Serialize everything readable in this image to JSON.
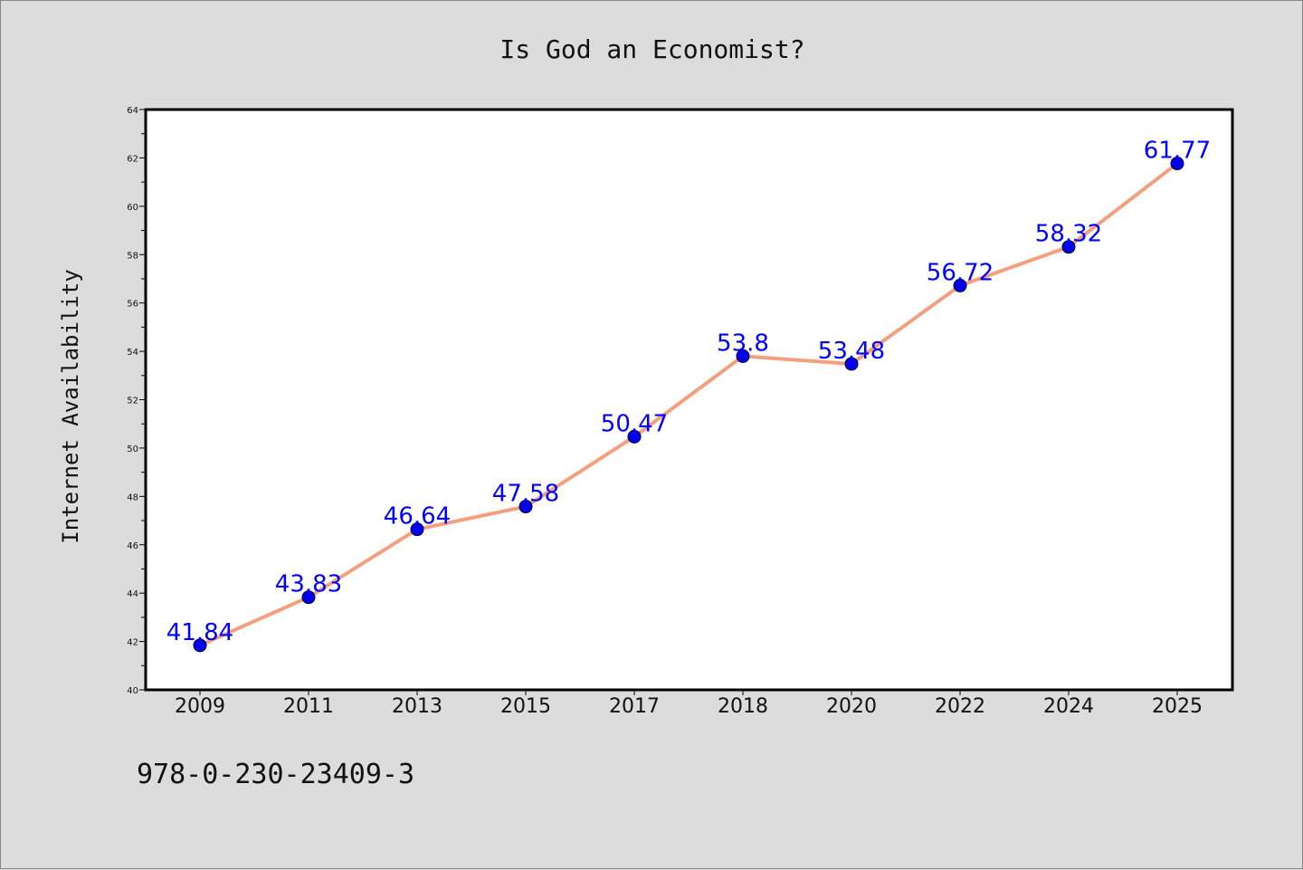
{
  "chart_data": {
    "type": "line",
    "title": "Is God an Economist?",
    "xlabel": "",
    "ylabel": "Internet Availability",
    "categories": [
      "2009",
      "2011",
      "2013",
      "2015",
      "2017",
      "2018",
      "2020",
      "2022",
      "2024",
      "2025"
    ],
    "series": [
      {
        "values": [
          41.84,
          43.83,
          46.64,
          47.58,
          50.47,
          53.8,
          53.48,
          56.72,
          58.32,
          61.77
        ]
      }
    ],
    "data_labels": [
      "41.84",
      "43.83",
      "46.64",
      "47.58",
      "50.47",
      "53.8",
      "53.48",
      "56.72",
      "58.32",
      "61.77"
    ],
    "ylim": [
      40,
      64
    ],
    "y_ticks": [
      "40",
      "42",
      "44",
      "46",
      "48",
      "50",
      "52",
      "54",
      "56",
      "58",
      "60",
      "62",
      "64"
    ],
    "grid": false,
    "legend": "none",
    "line_color": "#f4a07e",
    "marker_color": "#0000ee",
    "label_color": "#0000ff"
  },
  "footer_text": "978-0-230-23409-3"
}
